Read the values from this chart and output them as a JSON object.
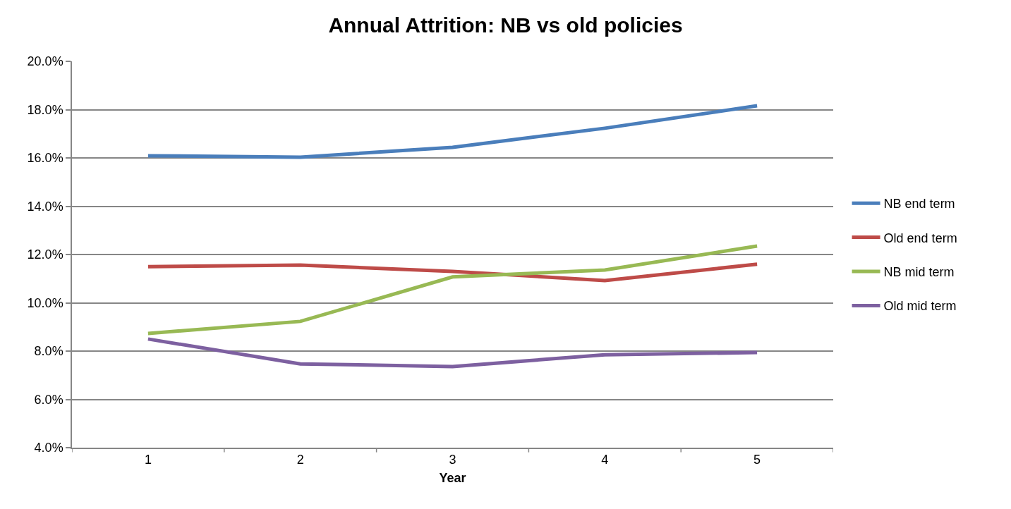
{
  "chart_data": {
    "type": "line",
    "title": "Annual Attrition: NB vs old policies",
    "xlabel": "Year",
    "categories": [
      "1",
      "2",
      "3",
      "4",
      "5"
    ],
    "series": [
      {
        "name": "NB end term",
        "color": "#4a7ebb",
        "values": [
          16.09,
          16.03,
          16.44,
          17.23,
          18.16
        ]
      },
      {
        "name": "Old end term",
        "color": "#be4b48",
        "values": [
          11.5,
          11.56,
          11.3,
          10.92,
          11.6
        ]
      },
      {
        "name": "NB mid term",
        "color": "#98b954",
        "values": [
          8.73,
          9.23,
          11.07,
          11.36,
          12.35
        ]
      },
      {
        "name": "Old mid term",
        "color": "#7d60a0",
        "values": [
          8.5,
          7.47,
          7.36,
          7.85,
          7.94
        ]
      }
    ],
    "ylim": [
      4,
      20
    ],
    "yticks": [
      {
        "value": 4,
        "label": "4.0%"
      },
      {
        "value": 6,
        "label": "6.0%"
      },
      {
        "value": 8,
        "label": "8.0%"
      },
      {
        "value": 10,
        "label": "10.0%"
      },
      {
        "value": 12,
        "label": "12.0%"
      },
      {
        "value": 14,
        "label": "14.0%"
      },
      {
        "value": 16,
        "label": "16.0%"
      },
      {
        "value": 18,
        "label": "18.0%"
      },
      {
        "value": 20,
        "label": "20.0%"
      }
    ],
    "grid": "y",
    "legend": "right",
    "marker": "none",
    "line_style": "solid"
  }
}
